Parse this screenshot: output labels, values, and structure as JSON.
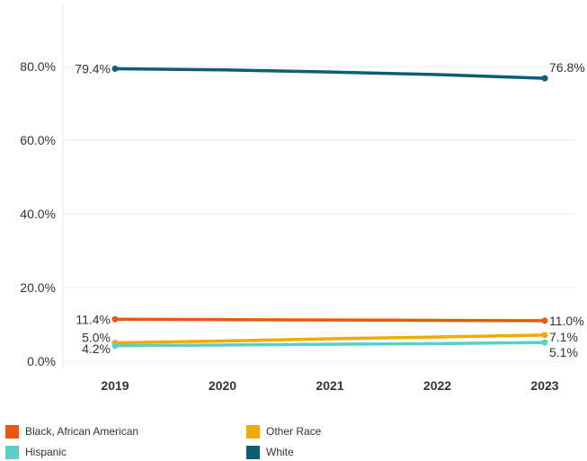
{
  "chart_data": {
    "type": "line",
    "title": "",
    "xlabel": "",
    "ylabel": "",
    "x": [
      "2019",
      "2020",
      "2021",
      "2022",
      "2023"
    ],
    "ylim": [
      0,
      90
    ],
    "yticks": [
      0,
      20,
      40,
      60,
      80
    ],
    "ytick_labels": [
      "0.0%",
      "20.0%",
      "40.0%",
      "60.0%",
      "80.0%"
    ],
    "grid": true,
    "legend_position": "bottom",
    "series": [
      {
        "name": "Black, African American",
        "color": "#E8590C",
        "values": [
          11.4,
          11.3,
          11.2,
          11.1,
          11.0
        ],
        "start_label": "11.4%",
        "end_label": "11.0%"
      },
      {
        "name": "Other Race",
        "color": "#F2A900",
        "values": [
          5.0,
          5.5,
          6.1,
          6.6,
          7.1
        ],
        "start_label": "5.0%",
        "end_label": "7.1%"
      },
      {
        "name": "Hispanic",
        "color": "#5CCFC4",
        "values": [
          4.2,
          4.4,
          4.6,
          4.8,
          5.1
        ],
        "start_label": "4.2%",
        "end_label": "5.1%"
      },
      {
        "name": "White",
        "color": "#0B5F73",
        "values": [
          79.4,
          79.1,
          78.5,
          77.8,
          76.8
        ],
        "start_label": "79.4%",
        "end_label": "76.8%"
      }
    ]
  },
  "legend": {
    "items": [
      {
        "label": "Black, African American",
        "color": "#E8590C"
      },
      {
        "label": "Other Race",
        "color": "#F2A900"
      },
      {
        "label": "Hispanic",
        "color": "#5CCFC4"
      },
      {
        "label": "White",
        "color": "#0B5F73"
      }
    ]
  }
}
